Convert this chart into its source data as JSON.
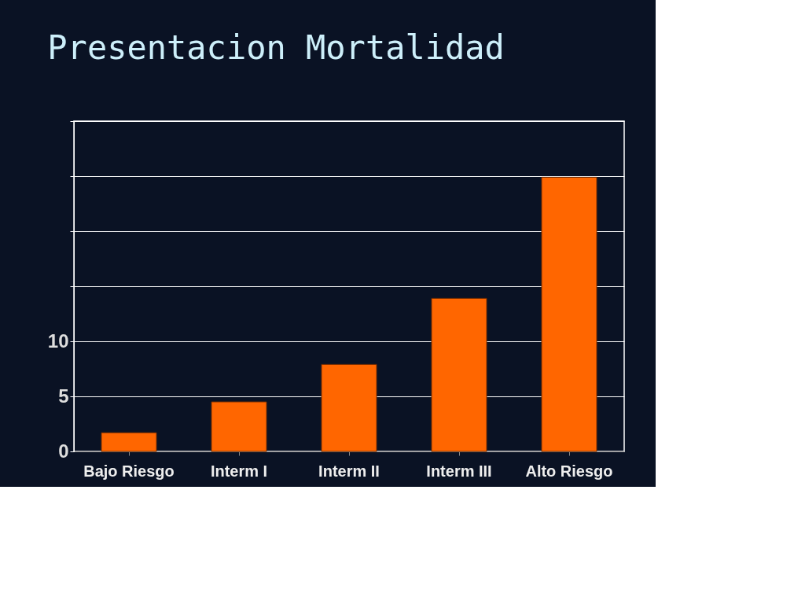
{
  "chart_data": {
    "type": "bar",
    "title": "Presentacion Mortalidad",
    "categories": [
      "Bajo Riesgo",
      "Interm I",
      "Interm II",
      "Interm III",
      "Alto Riesgo"
    ],
    "values": [
      1.7,
      4.5,
      7.9,
      13.9,
      24.9
    ],
    "color": "#ff6600",
    "ylim": [
      0,
      30
    ],
    "yticks": [
      0,
      5,
      10,
      {
        "value": 15,
        "label": null
      },
      {
        "value": 20,
        "label": null
      },
      {
        "value": 25,
        "label": null
      },
      {
        "value": 30,
        "label": null
      }
    ],
    "grid": "y"
  }
}
